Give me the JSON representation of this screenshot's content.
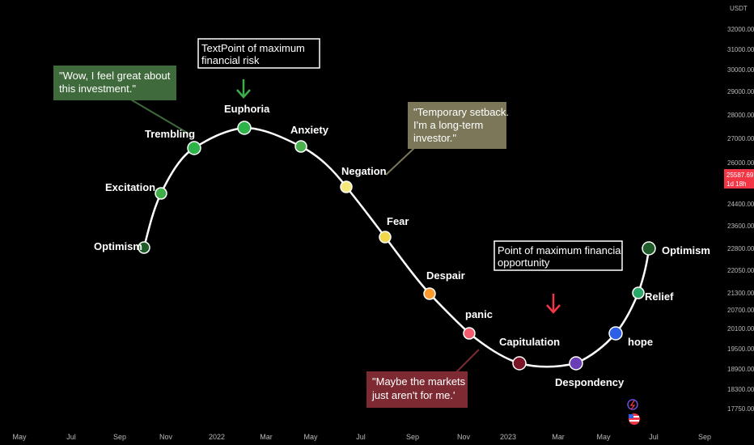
{
  "colors": {
    "background": "#000000",
    "curve": "#ffffff",
    "axis_text": "#b8b8b8",
    "price_tag": "#f23645",
    "arrow_top": "#3fae49",
    "arrow_bottom": "#f23645"
  },
  "axis": {
    "currency": "USDT",
    "y_ticks": [
      "32000.00",
      "31000.00",
      "30000.00",
      "29000.00",
      "28000.00",
      "27000.00",
      "26000.00",
      "24400.00",
      "23600.00",
      "22800.00",
      "22050.00",
      "21300.00",
      "20700.00",
      "20100.00",
      "19500.00",
      "18900.00",
      "18300.00",
      "17750.00"
    ],
    "x_ticks": [
      "May",
      "Jul",
      "Sep",
      "Nov",
      "2022",
      "Mar",
      "May",
      "Jul",
      "Sep",
      "Nov",
      "2023",
      "Mar",
      "May",
      "Jul",
      "Sep"
    ],
    "price_tag": {
      "value": "25587.69",
      "countdown": "1d 18h"
    }
  },
  "chart_data": {
    "type": "line",
    "title": "",
    "xlabel": "",
    "ylabel": "",
    "y_axis": "price (USDT), non-linear scale",
    "stages": [
      {
        "name": "Optimism",
        "month": "2021-08",
        "price": 22800,
        "color": "#1f5c2a"
      },
      {
        "name": "Excitation",
        "month": "2021-09",
        "price": 24600,
        "color": "#3fae49"
      },
      {
        "name": "Trembling",
        "month": "2021-11",
        "price": 27000,
        "color": "#2eb34a"
      },
      {
        "name": "Euphoria",
        "month": "2022-02",
        "price": 27600,
        "color": "#2eb34a"
      },
      {
        "name": "Anxiety",
        "month": "2022-05",
        "price": 26900,
        "color": "#4caf50"
      },
      {
        "name": "Negation",
        "month": "2022-07",
        "price": 25000,
        "color": "#f5e87a"
      },
      {
        "name": "Fear",
        "month": "2022-09",
        "price": 23300,
        "color": "#f2d64b"
      },
      {
        "name": "Despair",
        "month": "2022-11",
        "price": 21300,
        "color": "#ff9a2e"
      },
      {
        "name": "panic",
        "month": "2023-01",
        "price": 20000,
        "color": "#f25c6e"
      },
      {
        "name": "Capitulation",
        "month": "2023-04",
        "price": 19000,
        "color": "#7a1426"
      },
      {
        "name": "Despondency",
        "month": "2023-07",
        "price": 19000,
        "color": "#6a3fb5"
      },
      {
        "name": "hope",
        "month": "2023-09",
        "price": 20000,
        "color": "#2f5fe8"
      },
      {
        "name": "Relief",
        "month": "2023-10",
        "price": 21300,
        "color": "#2aa86a"
      },
      {
        "name": "Optimism",
        "month": "2023-11",
        "price": 22800,
        "color": "#1f5c2a"
      }
    ]
  },
  "callouts": {
    "wow": {
      "lines": [
        "\"Wow, I feel great about",
        "this investment.\""
      ],
      "bg": "#3f6a3c",
      "text_color": "#ffffff"
    },
    "setback": {
      "lines": [
        "\"Temporary setback.",
        "I'm a long-term",
        "investor.\""
      ],
      "bg": "#7b7758",
      "text_color": "#ffffff"
    },
    "maybe": {
      "lines": [
        "\"Maybe the markets",
        "just aren't for me.'"
      ],
      "bg": "#7e2a32",
      "text_color": "#ffffff"
    },
    "max_risk": {
      "lines": [
        "TextPoint of maximum",
        "financial risk"
      ],
      "bg": "#ffffff",
      "text_color": "#000000"
    },
    "max_opportunity": {
      "lines": [
        "Point of maximum financial",
        "opportunity"
      ],
      "bg": "#ffffff",
      "text_color": "#000000"
    }
  },
  "icons": [
    "lightning-icon",
    "flag-icon"
  ]
}
